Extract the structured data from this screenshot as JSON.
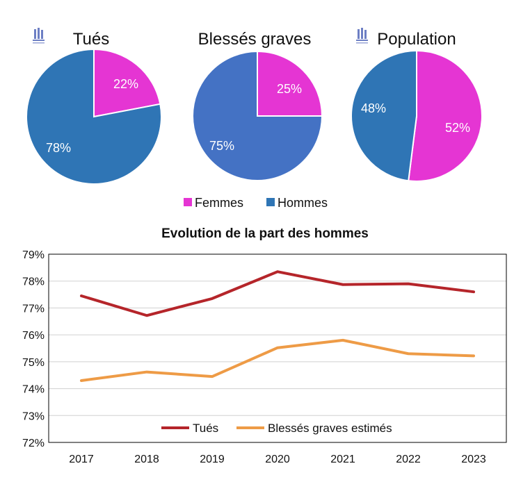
{
  "colors": {
    "femmes": "#e535d3",
    "hommes": "#2f75b5",
    "hommes_blesses": "#4472c4",
    "tues_line": "#b5252a",
    "blesses_line": "#ee9b46",
    "grid": "#d0d0d0"
  },
  "logo": {
    "icon": "building-icon"
  },
  "legend": {
    "femmes": "Femmes",
    "hommes": "Hommes"
  },
  "chart_data": [
    {
      "type": "pie",
      "title": "Tués",
      "labels": [
        "Femmes",
        "Hommes"
      ],
      "values": [
        22,
        78
      ],
      "value_labels": [
        "22%",
        "78%"
      ]
    },
    {
      "type": "pie",
      "title": "Blessés graves",
      "labels": [
        "Femmes",
        "Hommes"
      ],
      "values": [
        25,
        75
      ],
      "value_labels": [
        "25%",
        "75%"
      ]
    },
    {
      "type": "pie",
      "title": "Population",
      "labels": [
        "Femmes",
        "Hommes"
      ],
      "values": [
        52,
        48
      ],
      "value_labels": [
        "52%",
        "48%"
      ]
    },
    {
      "type": "line",
      "title": "Evolution de la part des hommes",
      "categories": [
        "2017",
        "2018",
        "2019",
        "2020",
        "2021",
        "2022",
        "2023"
      ],
      "ylim": [
        72,
        79
      ],
      "yticks": [
        "72%",
        "73%",
        "74%",
        "75%",
        "76%",
        "77%",
        "78%",
        "79%"
      ],
      "grid": true,
      "legend_position": "bottom-inside",
      "series": [
        {
          "name": "Tués",
          "values": [
            77.45,
            76.72,
            77.35,
            78.35,
            77.87,
            77.9,
            77.6
          ]
        },
        {
          "name": "Blessés graves estimés",
          "values": [
            74.3,
            74.62,
            74.45,
            75.52,
            75.8,
            75.3,
            75.22
          ]
        }
      ]
    }
  ]
}
